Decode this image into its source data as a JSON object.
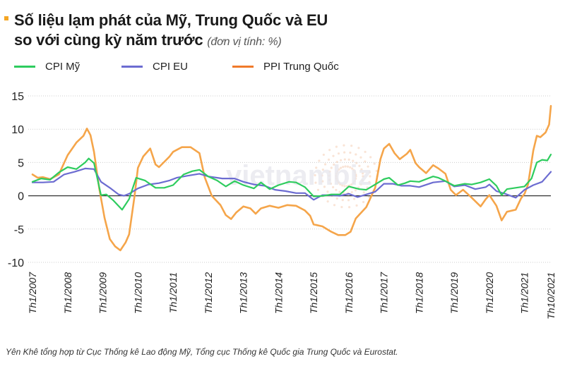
{
  "header": {
    "title_line1": "Số liệu lạm phát của Mỹ, Trung Quốc và EU",
    "title_line2": "so với cùng kỳ năm trước",
    "unit_note": "(đơn vị tính: %)"
  },
  "watermark": "vietnambiz",
  "footer": {
    "source": "Yên Khê tổng hợp từ Cục Thống kê Lao động Mỹ, Tổng cục Thống kê Quốc gia Trung Quốc và Eurostat."
  },
  "colors": {
    "cpi_us": "#2ecc5e",
    "cpi_eu": "#6c6cd1",
    "ppi_cn": "#f5a54a",
    "grid": "#cccccc",
    "zero": "#333333",
    "title_mark": "#f5a623"
  },
  "chart_data": {
    "type": "line",
    "ylim": [
      -10,
      15
    ],
    "yticks": [
      -10,
      -5,
      0,
      5,
      10,
      15
    ],
    "x_range": [
      2007.0,
      2021.75
    ],
    "xticks": [
      {
        "x": 2007,
        "label": "Th1/2007"
      },
      {
        "x": 2008,
        "label": "Th1/2008"
      },
      {
        "x": 2009,
        "label": "Th1/2009"
      },
      {
        "x": 2010,
        "label": "Th1/2010"
      },
      {
        "x": 2011,
        "label": "Th1/2011"
      },
      {
        "x": 2012,
        "label": "Th1/2012"
      },
      {
        "x": 2013,
        "label": "Th1/2013"
      },
      {
        "x": 2014,
        "label": "Th1/2014"
      },
      {
        "x": 2015,
        "label": "Th1/2015"
      },
      {
        "x": 2016,
        "label": "Th1/2016"
      },
      {
        "x": 2017,
        "label": "Th1/2017"
      },
      {
        "x": 2018,
        "label": "Th1/2018"
      },
      {
        "x": 2019,
        "label": "Th1/2019"
      },
      {
        "x": 2020,
        "label": "Th1/2020"
      },
      {
        "x": 2021,
        "label": "Th1/2021"
      },
      {
        "x": 2021.75,
        "label": "Th10/2021"
      }
    ],
    "grid": true,
    "legend_position": "top-left",
    "series": [
      {
        "name": "CPI Mỹ",
        "color_key": "cpi_us",
        "points": [
          [
            2007.0,
            2.1
          ],
          [
            2007.25,
            2.6
          ],
          [
            2007.5,
            2.4
          ],
          [
            2007.75,
            3.5
          ],
          [
            2008.0,
            4.3
          ],
          [
            2008.25,
            4.0
          ],
          [
            2008.5,
            5.0
          ],
          [
            2008.6,
            5.6
          ],
          [
            2008.75,
            4.9
          ],
          [
            2008.95,
            0.1
          ],
          [
            2009.1,
            0.2
          ],
          [
            2009.3,
            -0.7
          ],
          [
            2009.55,
            -2.1
          ],
          [
            2009.75,
            -0.5
          ],
          [
            2009.95,
            2.7
          ],
          [
            2010.2,
            2.3
          ],
          [
            2010.5,
            1.2
          ],
          [
            2010.75,
            1.2
          ],
          [
            2011.0,
            1.6
          ],
          [
            2011.3,
            3.2
          ],
          [
            2011.55,
            3.7
          ],
          [
            2011.75,
            3.9
          ],
          [
            2012.0,
            2.9
          ],
          [
            2012.25,
            2.3
          ],
          [
            2012.5,
            1.4
          ],
          [
            2012.75,
            2.2
          ],
          [
            2013.0,
            1.6
          ],
          [
            2013.3,
            1.1
          ],
          [
            2013.5,
            2.0
          ],
          [
            2013.75,
            1.0
          ],
          [
            2014.0,
            1.6
          ],
          [
            2014.3,
            2.1
          ],
          [
            2014.5,
            2.0
          ],
          [
            2014.75,
            1.3
          ],
          [
            2015.0,
            -0.1
          ],
          [
            2015.3,
            0.0
          ],
          [
            2015.5,
            0.2
          ],
          [
            2015.75,
            0.2
          ],
          [
            2016.0,
            1.4
          ],
          [
            2016.3,
            1.0
          ],
          [
            2016.5,
            0.9
          ],
          [
            2016.75,
            1.7
          ],
          [
            2017.0,
            2.5
          ],
          [
            2017.15,
            2.7
          ],
          [
            2017.4,
            1.6
          ],
          [
            2017.6,
            1.9
          ],
          [
            2017.75,
            2.2
          ],
          [
            2018.0,
            2.1
          ],
          [
            2018.4,
            2.9
          ],
          [
            2018.55,
            2.7
          ],
          [
            2018.75,
            2.2
          ],
          [
            2019.0,
            1.5
          ],
          [
            2019.3,
            1.8
          ],
          [
            2019.5,
            1.7
          ],
          [
            2019.75,
            2.0
          ],
          [
            2020.0,
            2.5
          ],
          [
            2020.2,
            1.5
          ],
          [
            2020.35,
            0.1
          ],
          [
            2020.5,
            1.0
          ],
          [
            2020.75,
            1.2
          ],
          [
            2021.0,
            1.4
          ],
          [
            2021.2,
            2.6
          ],
          [
            2021.35,
            5.0
          ],
          [
            2021.5,
            5.4
          ],
          [
            2021.65,
            5.3
          ],
          [
            2021.75,
            6.2
          ]
        ]
      },
      {
        "name": "CPI EU",
        "color_key": "cpi_eu",
        "points": [
          [
            2007.0,
            2.0
          ],
          [
            2007.3,
            2.0
          ],
          [
            2007.6,
            2.1
          ],
          [
            2007.9,
            3.2
          ],
          [
            2008.2,
            3.6
          ],
          [
            2008.5,
            4.1
          ],
          [
            2008.75,
            4.0
          ],
          [
            2008.95,
            2.1
          ],
          [
            2009.2,
            1.2
          ],
          [
            2009.45,
            0.2
          ],
          [
            2009.6,
            0.0
          ],
          [
            2009.75,
            0.3
          ],
          [
            2010.0,
            1.1
          ],
          [
            2010.3,
            1.7
          ],
          [
            2010.6,
            1.9
          ],
          [
            2010.9,
            2.3
          ],
          [
            2011.1,
            2.7
          ],
          [
            2011.4,
            3.0
          ],
          [
            2011.75,
            3.3
          ],
          [
            2012.0,
            2.9
          ],
          [
            2012.4,
            2.6
          ],
          [
            2012.75,
            2.6
          ],
          [
            2013.0,
            2.1
          ],
          [
            2013.3,
            1.7
          ],
          [
            2013.6,
            1.5
          ],
          [
            2013.9,
            0.9
          ],
          [
            2014.2,
            0.7
          ],
          [
            2014.5,
            0.4
          ],
          [
            2014.75,
            0.4
          ],
          [
            2015.0,
            -0.6
          ],
          [
            2015.25,
            0.1
          ],
          [
            2015.5,
            0.1
          ],
          [
            2015.75,
            0.0
          ],
          [
            2016.0,
            0.3
          ],
          [
            2016.25,
            -0.2
          ],
          [
            2016.5,
            0.2
          ],
          [
            2016.75,
            0.6
          ],
          [
            2017.0,
            1.8
          ],
          [
            2017.25,
            1.8
          ],
          [
            2017.5,
            1.5
          ],
          [
            2017.75,
            1.5
          ],
          [
            2018.0,
            1.3
          ],
          [
            2018.4,
            2.0
          ],
          [
            2018.75,
            2.2
          ],
          [
            2019.0,
            1.4
          ],
          [
            2019.3,
            1.6
          ],
          [
            2019.6,
            1.0
          ],
          [
            2019.9,
            1.3
          ],
          [
            2020.0,
            1.7
          ],
          [
            2020.2,
            0.7
          ],
          [
            2020.45,
            0.3
          ],
          [
            2020.75,
            -0.3
          ],
          [
            2021.0,
            0.9
          ],
          [
            2021.25,
            1.6
          ],
          [
            2021.5,
            2.1
          ],
          [
            2021.65,
            3.0
          ],
          [
            2021.75,
            3.6
          ]
        ]
      },
      {
        "name": "PPI Trung Quốc",
        "color_key": "ppi_cn",
        "points": [
          [
            2007.0,
            3.2
          ],
          [
            2007.15,
            2.7
          ],
          [
            2007.3,
            2.8
          ],
          [
            2007.5,
            2.5
          ],
          [
            2007.75,
            3.2
          ],
          [
            2008.0,
            6.1
          ],
          [
            2008.25,
            8.0
          ],
          [
            2008.45,
            9.0
          ],
          [
            2008.55,
            10.1
          ],
          [
            2008.65,
            9.1
          ],
          [
            2008.75,
            6.6
          ],
          [
            2008.9,
            1.1
          ],
          [
            2009.05,
            -3.3
          ],
          [
            2009.2,
            -6.5
          ],
          [
            2009.35,
            -7.6
          ],
          [
            2009.5,
            -8.2
          ],
          [
            2009.65,
            -7.0
          ],
          [
            2009.75,
            -5.8
          ],
          [
            2009.9,
            -0.2
          ],
          [
            2010.0,
            4.2
          ],
          [
            2010.15,
            5.9
          ],
          [
            2010.35,
            7.1
          ],
          [
            2010.5,
            4.7
          ],
          [
            2010.6,
            4.3
          ],
          [
            2010.75,
            5.1
          ],
          [
            2010.9,
            5.9
          ],
          [
            2011.0,
            6.6
          ],
          [
            2011.25,
            7.3
          ],
          [
            2011.5,
            7.3
          ],
          [
            2011.75,
            6.4
          ],
          [
            2011.9,
            2.8
          ],
          [
            2012.1,
            0.0
          ],
          [
            2012.35,
            -1.4
          ],
          [
            2012.5,
            -2.9
          ],
          [
            2012.65,
            -3.5
          ],
          [
            2012.8,
            -2.5
          ],
          [
            2013.0,
            -1.6
          ],
          [
            2013.2,
            -1.9
          ],
          [
            2013.35,
            -2.7
          ],
          [
            2013.5,
            -1.9
          ],
          [
            2013.75,
            -1.5
          ],
          [
            2014.0,
            -1.8
          ],
          [
            2014.25,
            -1.4
          ],
          [
            2014.5,
            -1.5
          ],
          [
            2014.75,
            -2.2
          ],
          [
            2014.9,
            -3.0
          ],
          [
            2015.0,
            -4.3
          ],
          [
            2015.25,
            -4.6
          ],
          [
            2015.5,
            -5.4
          ],
          [
            2015.7,
            -5.9
          ],
          [
            2015.9,
            -5.9
          ],
          [
            2016.05,
            -5.4
          ],
          [
            2016.2,
            -3.4
          ],
          [
            2016.5,
            -1.7
          ],
          [
            2016.75,
            1.2
          ],
          [
            2016.9,
            5.5
          ],
          [
            2017.0,
            7.1
          ],
          [
            2017.15,
            7.8
          ],
          [
            2017.3,
            6.4
          ],
          [
            2017.45,
            5.5
          ],
          [
            2017.65,
            6.3
          ],
          [
            2017.75,
            6.9
          ],
          [
            2017.9,
            4.9
          ],
          [
            2018.0,
            4.3
          ],
          [
            2018.2,
            3.4
          ],
          [
            2018.4,
            4.6
          ],
          [
            2018.55,
            4.1
          ],
          [
            2018.75,
            3.3
          ],
          [
            2018.9,
            0.9
          ],
          [
            2019.05,
            0.1
          ],
          [
            2019.25,
            0.9
          ],
          [
            2019.5,
            -0.3
          ],
          [
            2019.75,
            -1.6
          ],
          [
            2019.9,
            -0.5
          ],
          [
            2020.0,
            0.1
          ],
          [
            2020.2,
            -1.5
          ],
          [
            2020.35,
            -3.7
          ],
          [
            2020.5,
            -2.4
          ],
          [
            2020.75,
            -2.1
          ],
          [
            2020.9,
            -0.4
          ],
          [
            2021.0,
            0.3
          ],
          [
            2021.1,
            1.7
          ],
          [
            2021.25,
            6.8
          ],
          [
            2021.35,
            9.0
          ],
          [
            2021.45,
            8.8
          ],
          [
            2021.6,
            9.5
          ],
          [
            2021.7,
            10.7
          ],
          [
            2021.75,
            13.5
          ]
        ]
      }
    ]
  }
}
